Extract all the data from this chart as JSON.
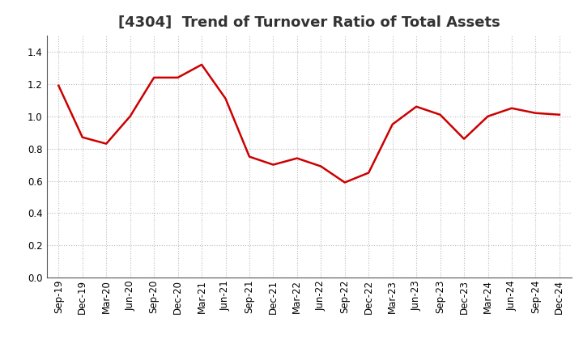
{
  "title": "[4304]  Trend of Turnover Ratio of Total Assets",
  "x_labels": [
    "Sep-19",
    "Dec-19",
    "Mar-20",
    "Jun-20",
    "Sep-20",
    "Dec-20",
    "Mar-21",
    "Jun-21",
    "Sep-21",
    "Dec-21",
    "Mar-22",
    "Jun-22",
    "Sep-22",
    "Dec-22",
    "Mar-23",
    "Jun-23",
    "Sep-23",
    "Dec-23",
    "Mar-24",
    "Jun-24",
    "Sep-24",
    "Dec-24"
  ],
  "y_values": [
    1.19,
    0.87,
    0.83,
    1.0,
    1.24,
    1.24,
    1.32,
    1.11,
    0.75,
    0.7,
    0.74,
    0.69,
    0.59,
    0.65,
    0.95,
    1.06,
    1.01,
    0.86,
    1.0,
    1.05,
    1.02,
    1.01
  ],
  "line_color": "#cc0000",
  "line_width": 1.8,
  "ylim": [
    0.0,
    1.5
  ],
  "yticks": [
    0.0,
    0.2,
    0.4,
    0.6,
    0.8,
    1.0,
    1.2,
    1.4
  ],
  "grid_color": "#bbbbbb",
  "background_color": "#ffffff",
  "plot_bg_color": "#ffffff",
  "title_fontsize": 13,
  "tick_fontsize": 8.5
}
